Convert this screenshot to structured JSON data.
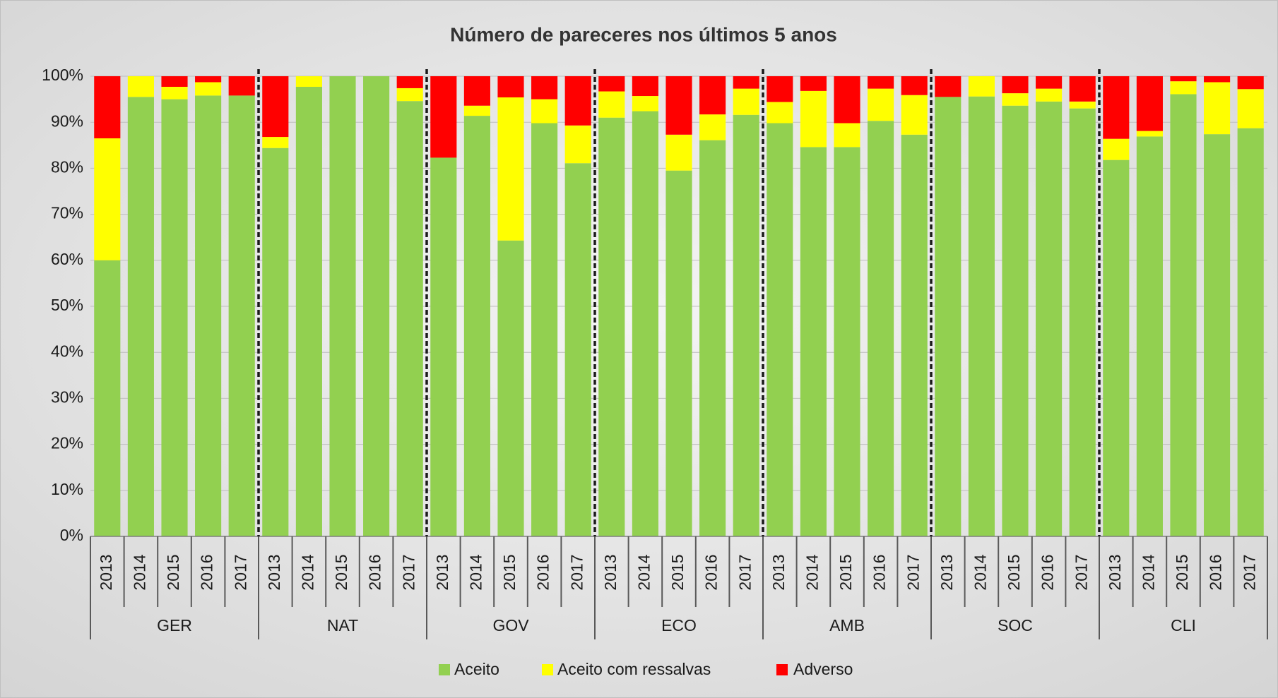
{
  "chart_data": {
    "type": "stacked_bar_100",
    "title": "Número de pareceres nos últimos 5 anos",
    "categories": [
      "2013",
      "2014",
      "2015",
      "2016",
      "2017",
      "2013",
      "2014",
      "2015",
      "2016",
      "2017",
      "2013",
      "2014",
      "2015",
      "2016",
      "2017",
      "2013",
      "2014",
      "2015",
      "2016",
      "2017",
      "2013",
      "2014",
      "2015",
      "2016",
      "2017",
      "2013",
      "2014",
      "2015",
      "2016",
      "2017",
      "2013",
      "2014",
      "2015",
      "2016",
      "2017"
    ],
    "groups": [
      "GER",
      "NAT",
      "GOV",
      "ECO",
      "AMB",
      "SOC",
      "CLI"
    ],
    "series": [
      {
        "name": "Aceito",
        "color": "#92d050",
        "values": [
          60,
          95.5,
          95,
          95.8,
          95.8,
          84.4,
          97.7,
          100,
          100,
          94.6,
          82.3,
          91.4,
          64.3,
          89.8,
          81.1,
          91,
          92.4,
          79.5,
          86.1,
          91.6,
          89.8,
          84.6,
          84.6,
          90.3,
          87.3,
          95.5,
          95.6,
          93.6,
          94.5,
          93,
          81.8,
          86.9,
          96.1,
          87.4,
          88.7
        ]
      },
      {
        "name": "Aceito com ressalvas",
        "color": "#ffff00",
        "values": [
          26.5,
          4.5,
          2.7,
          2.9,
          0,
          2.4,
          2.3,
          0,
          0,
          2.8,
          0,
          2.2,
          31.1,
          5.2,
          8.2,
          5.7,
          3.3,
          7.8,
          5.6,
          5.7,
          4.6,
          12.2,
          5.2,
          7,
          8.6,
          0,
          4.4,
          2.7,
          2.8,
          1.5,
          4.6,
          1.2,
          2.8,
          11.3,
          8.5
        ]
      },
      {
        "name": "Adverso",
        "color": "#ff0000",
        "values": [
          13.5,
          0,
          2.3,
          1.3,
          4.2,
          13.2,
          0,
          0,
          0,
          2.6,
          17.7,
          6.4,
          4.6,
          5,
          10.7,
          3.3,
          4.3,
          12.7,
          8.3,
          2.7,
          5.6,
          3.2,
          10.2,
          2.7,
          4.1,
          4.5,
          0,
          3.7,
          2.7,
          5.5,
          13.6,
          11.9,
          1.1,
          1.3,
          2.8
        ]
      }
    ],
    "ylim": [
      0,
      100
    ],
    "yticks": [
      {
        "value": 0,
        "label": "0%"
      },
      {
        "value": 10,
        "label": "10%"
      },
      {
        "value": 20,
        "label": "20%"
      },
      {
        "value": 30,
        "label": "30%"
      },
      {
        "value": 40,
        "label": "40%"
      },
      {
        "value": 50,
        "label": "50%"
      },
      {
        "value": 60,
        "label": "60%"
      },
      {
        "value": 70,
        "label": "70%"
      },
      {
        "value": 80,
        "label": "80%"
      },
      {
        "value": 90,
        "label": "90%"
      },
      {
        "value": 100,
        "label": "100%"
      }
    ],
    "grid": true,
    "legend": "bottom"
  }
}
